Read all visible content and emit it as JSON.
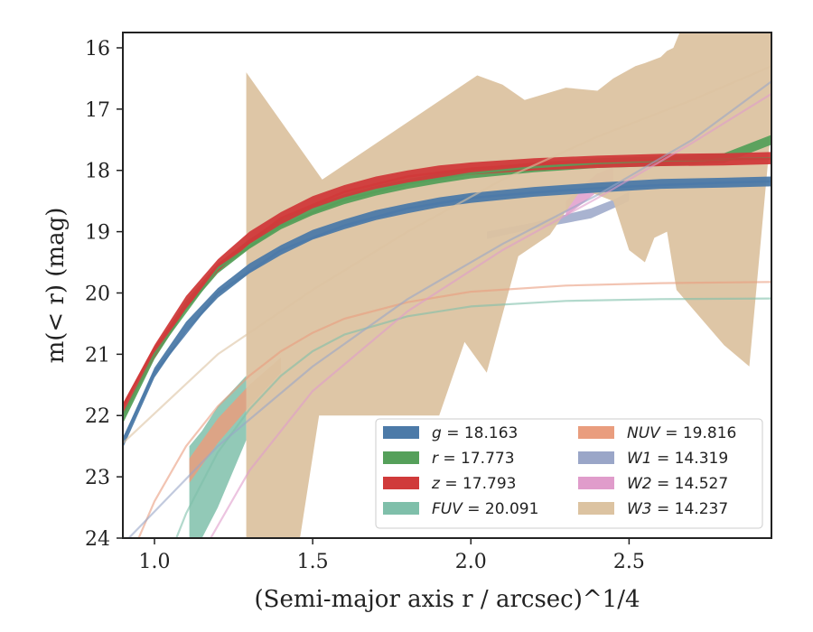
{
  "chart_data": {
    "type": "line",
    "xlabel": "(Semi-major axis r / arcsec)^1/4",
    "ylabel": "m(< r) (mag)",
    "xlim": [
      0.9,
      2.95
    ],
    "ylim": [
      24,
      15.75
    ],
    "y_inverted": true,
    "x_ticks": [
      {
        "value": 1.0,
        "label": "1.0"
      },
      {
        "value": 1.5,
        "label": "1.5"
      },
      {
        "value": 2.0,
        "label": "2.0"
      },
      {
        "value": 2.5,
        "label": "2.5"
      }
    ],
    "y_ticks": [
      {
        "value": 16,
        "label": "16"
      },
      {
        "value": 17,
        "label": "17"
      },
      {
        "value": 18,
        "label": "18"
      },
      {
        "value": 19,
        "label": "19"
      },
      {
        "value": 20,
        "label": "20"
      },
      {
        "value": 21,
        "label": "21"
      },
      {
        "value": 22,
        "label": "22"
      },
      {
        "value": 23,
        "label": "23"
      },
      {
        "value": 24,
        "label": "24"
      }
    ],
    "grid": false,
    "legend_position": "lower-right",
    "series": [
      {
        "name": "g = 18.163",
        "band": "g",
        "total_mag": "18.163",
        "color": "#4c7aa8",
        "band_width": 0.08,
        "curve": [
          [
            0.9,
            22.45
          ],
          [
            1.0,
            21.3
          ],
          [
            1.1,
            20.55
          ],
          [
            1.2,
            20.0
          ],
          [
            1.3,
            19.6
          ],
          [
            1.4,
            19.3
          ],
          [
            1.5,
            19.05
          ],
          [
            1.6,
            18.88
          ],
          [
            1.7,
            18.73
          ],
          [
            1.8,
            18.62
          ],
          [
            1.9,
            18.52
          ],
          [
            2.0,
            18.45
          ],
          [
            2.2,
            18.35
          ],
          [
            2.4,
            18.28
          ],
          [
            2.6,
            18.22
          ],
          [
            2.8,
            18.2
          ],
          [
            2.95,
            18.18
          ]
        ],
        "model": [
          [
            0.9,
            22.4
          ],
          [
            1.0,
            21.3
          ],
          [
            1.2,
            20.0
          ],
          [
            1.4,
            19.3
          ],
          [
            1.6,
            18.9
          ],
          [
            1.8,
            18.62
          ],
          [
            2.0,
            18.45
          ],
          [
            2.2,
            18.36
          ],
          [
            2.4,
            18.29
          ],
          [
            2.6,
            18.24
          ],
          [
            2.8,
            18.2
          ],
          [
            2.95,
            18.18
          ]
        ]
      },
      {
        "name": "r = 17.773",
        "band": "r",
        "total_mag": "17.773",
        "color": "#55a05a",
        "band_width": 0.08,
        "curve": [
          [
            0.9,
            22.05
          ],
          [
            1.0,
            21.0
          ],
          [
            1.1,
            20.2
          ],
          [
            1.2,
            19.6
          ],
          [
            1.3,
            19.2
          ],
          [
            1.4,
            18.88
          ],
          [
            1.5,
            18.65
          ],
          [
            1.6,
            18.47
          ],
          [
            1.7,
            18.33
          ],
          [
            1.8,
            18.22
          ],
          [
            1.9,
            18.13
          ],
          [
            2.0,
            18.05
          ],
          [
            2.2,
            17.95
          ],
          [
            2.4,
            17.88
          ],
          [
            2.6,
            17.85
          ],
          [
            2.8,
            17.8
          ],
          [
            2.95,
            17.5
          ]
        ],
        "model": [
          [
            0.9,
            22.0
          ],
          [
            1.0,
            21.0
          ],
          [
            1.2,
            19.6
          ],
          [
            1.4,
            18.9
          ],
          [
            1.6,
            18.48
          ],
          [
            1.8,
            18.22
          ],
          [
            2.0,
            18.05
          ],
          [
            2.2,
            17.95
          ],
          [
            2.4,
            17.88
          ],
          [
            2.6,
            17.84
          ],
          [
            2.8,
            17.82
          ],
          [
            2.95,
            17.8
          ]
        ]
      },
      {
        "name": "z = 17.793",
        "band": "z",
        "total_mag": "17.793",
        "color": "#d03a3a",
        "band_width": 0.1,
        "curve": [
          [
            0.9,
            21.9
          ],
          [
            1.0,
            20.95
          ],
          [
            1.1,
            20.15
          ],
          [
            1.2,
            19.55
          ],
          [
            1.3,
            19.1
          ],
          [
            1.4,
            18.78
          ],
          [
            1.5,
            18.52
          ],
          [
            1.6,
            18.34
          ],
          [
            1.7,
            18.2
          ],
          [
            1.8,
            18.1
          ],
          [
            1.9,
            18.02
          ],
          [
            2.0,
            17.97
          ],
          [
            2.2,
            17.9
          ],
          [
            2.4,
            17.86
          ],
          [
            2.6,
            17.83
          ],
          [
            2.8,
            17.82
          ],
          [
            2.95,
            17.8
          ]
        ],
        "model": [
          [
            0.9,
            21.85
          ],
          [
            1.0,
            20.9
          ],
          [
            1.2,
            19.55
          ],
          [
            1.4,
            18.78
          ],
          [
            1.6,
            18.35
          ],
          [
            1.8,
            18.1
          ],
          [
            2.0,
            17.97
          ],
          [
            2.2,
            17.9
          ],
          [
            2.4,
            17.86
          ],
          [
            2.6,
            17.83
          ],
          [
            2.8,
            17.82
          ],
          [
            2.95,
            17.81
          ]
        ]
      },
      {
        "name": "FUV = 20.091",
        "band": "FUV",
        "total_mag": "20.091",
        "color": "#7fbfaa",
        "band_upper": [
          [
            1.11,
            22.5
          ],
          [
            1.15,
            22.25
          ],
          [
            1.2,
            21.85
          ],
          [
            1.29,
            21.35
          ]
        ],
        "band_lower": [
          [
            1.11,
            24.0
          ],
          [
            1.15,
            24.0
          ],
          [
            1.2,
            23.5
          ],
          [
            1.29,
            22.4
          ]
        ],
        "model": [
          [
            1.0,
            24.9
          ],
          [
            1.1,
            23.6
          ],
          [
            1.2,
            22.6
          ],
          [
            1.3,
            21.9
          ],
          [
            1.4,
            21.35
          ],
          [
            1.5,
            20.95
          ],
          [
            1.6,
            20.68
          ],
          [
            1.8,
            20.38
          ],
          [
            2.0,
            20.22
          ],
          [
            2.3,
            20.13
          ],
          [
            2.6,
            20.1
          ],
          [
            2.95,
            20.09
          ]
        ]
      },
      {
        "name": "NUV = 19.816",
        "band": "NUV",
        "total_mag": "19.816",
        "color": "#e99d7e",
        "band_upper": [
          [
            1.11,
            22.7
          ],
          [
            1.2,
            22.05
          ],
          [
            1.3,
            21.5
          ],
          [
            1.4,
            21.05
          ]
        ],
        "band_lower": [
          [
            1.11,
            23.1
          ],
          [
            1.2,
            22.45
          ],
          [
            1.3,
            21.85
          ],
          [
            1.4,
            21.3
          ]
        ],
        "model": [
          [
            0.9,
            24.6
          ],
          [
            1.0,
            23.4
          ],
          [
            1.1,
            22.5
          ],
          [
            1.2,
            21.85
          ],
          [
            1.3,
            21.35
          ],
          [
            1.4,
            20.95
          ],
          [
            1.5,
            20.65
          ],
          [
            1.6,
            20.42
          ],
          [
            1.8,
            20.15
          ],
          [
            2.0,
            19.98
          ],
          [
            2.3,
            19.88
          ],
          [
            2.6,
            19.84
          ],
          [
            2.95,
            19.82
          ]
        ]
      },
      {
        "name": "W1 = 14.319",
        "band": "W1",
        "total_mag": "14.319",
        "color": "#9aa6c8",
        "band_upper": [
          [
            2.05,
            19.0
          ],
          [
            2.2,
            18.85
          ],
          [
            2.3,
            18.72
          ],
          [
            2.38,
            18.62
          ],
          [
            2.45,
            18.48
          ],
          [
            2.5,
            18.35
          ]
        ],
        "band_lower": [
          [
            2.05,
            19.12
          ],
          [
            2.2,
            18.95
          ],
          [
            2.3,
            18.86
          ],
          [
            2.38,
            18.78
          ],
          [
            2.45,
            18.62
          ],
          [
            2.5,
            18.5
          ]
        ],
        "model": [
          [
            0.9,
            24.1
          ],
          [
            1.2,
            22.5
          ],
          [
            1.5,
            21.2
          ],
          [
            1.8,
            20.1
          ],
          [
            2.1,
            19.2
          ],
          [
            2.4,
            18.4
          ],
          [
            2.7,
            17.5
          ],
          [
            2.95,
            16.55
          ]
        ]
      },
      {
        "name": "W2 = 14.527",
        "band": "W2",
        "total_mag": "14.527",
        "color": "#e09ccb",
        "band_upper": [
          [
            2.3,
            18.5
          ],
          [
            2.35,
            18.25
          ],
          [
            2.4,
            18.05
          ],
          [
            2.45,
            17.95
          ]
        ],
        "band_lower": [
          [
            2.3,
            18.75
          ],
          [
            2.35,
            18.55
          ],
          [
            2.4,
            18.35
          ],
          [
            2.45,
            18.25
          ]
        ],
        "model": [
          [
            1.1,
            24.7
          ],
          [
            1.3,
            22.9
          ],
          [
            1.5,
            21.6
          ],
          [
            1.8,
            20.3
          ],
          [
            2.1,
            19.3
          ],
          [
            2.4,
            18.45
          ],
          [
            2.7,
            17.55
          ],
          [
            2.95,
            16.75
          ]
        ]
      },
      {
        "name": "W3 = 14.237",
        "band": "W3",
        "total_mag": "14.237",
        "color": "#dcc3a1",
        "band_upper": [
          [
            1.29,
            16.4
          ],
          [
            1.53,
            18.15
          ],
          [
            2.02,
            16.45
          ],
          [
            2.1,
            16.6
          ],
          [
            2.17,
            16.85
          ],
          [
            2.3,
            16.65
          ],
          [
            2.4,
            16.7
          ],
          [
            2.45,
            16.5
          ],
          [
            2.52,
            16.3
          ],
          [
            2.55,
            16.25
          ],
          [
            2.6,
            16.15
          ],
          [
            2.62,
            16.05
          ],
          [
            2.64,
            16.0
          ],
          [
            2.66,
            15.75
          ],
          [
            2.95,
            15.75
          ]
        ],
        "band_lower": [
          [
            1.29,
            24.0
          ],
          [
            1.46,
            24.0
          ],
          [
            1.52,
            22.0
          ],
          [
            1.9,
            22.0
          ],
          [
            1.98,
            20.8
          ],
          [
            2.05,
            21.3
          ],
          [
            2.15,
            19.4
          ],
          [
            2.25,
            19.05
          ],
          [
            2.35,
            18.3
          ],
          [
            2.45,
            18.5
          ],
          [
            2.5,
            19.3
          ],
          [
            2.55,
            19.5
          ],
          [
            2.58,
            19.1
          ],
          [
            2.62,
            19.0
          ],
          [
            2.65,
            19.95
          ],
          [
            2.8,
            20.85
          ],
          [
            2.88,
            21.2
          ],
          [
            2.95,
            17.25
          ]
        ],
        "model": [
          [
            0.9,
            22.45
          ],
          [
            1.2,
            21.0
          ],
          [
            1.5,
            19.95
          ],
          [
            1.8,
            19.0
          ],
          [
            2.1,
            18.15
          ],
          [
            2.4,
            17.45
          ],
          [
            2.7,
            16.85
          ],
          [
            2.95,
            16.3
          ]
        ]
      }
    ]
  }
}
